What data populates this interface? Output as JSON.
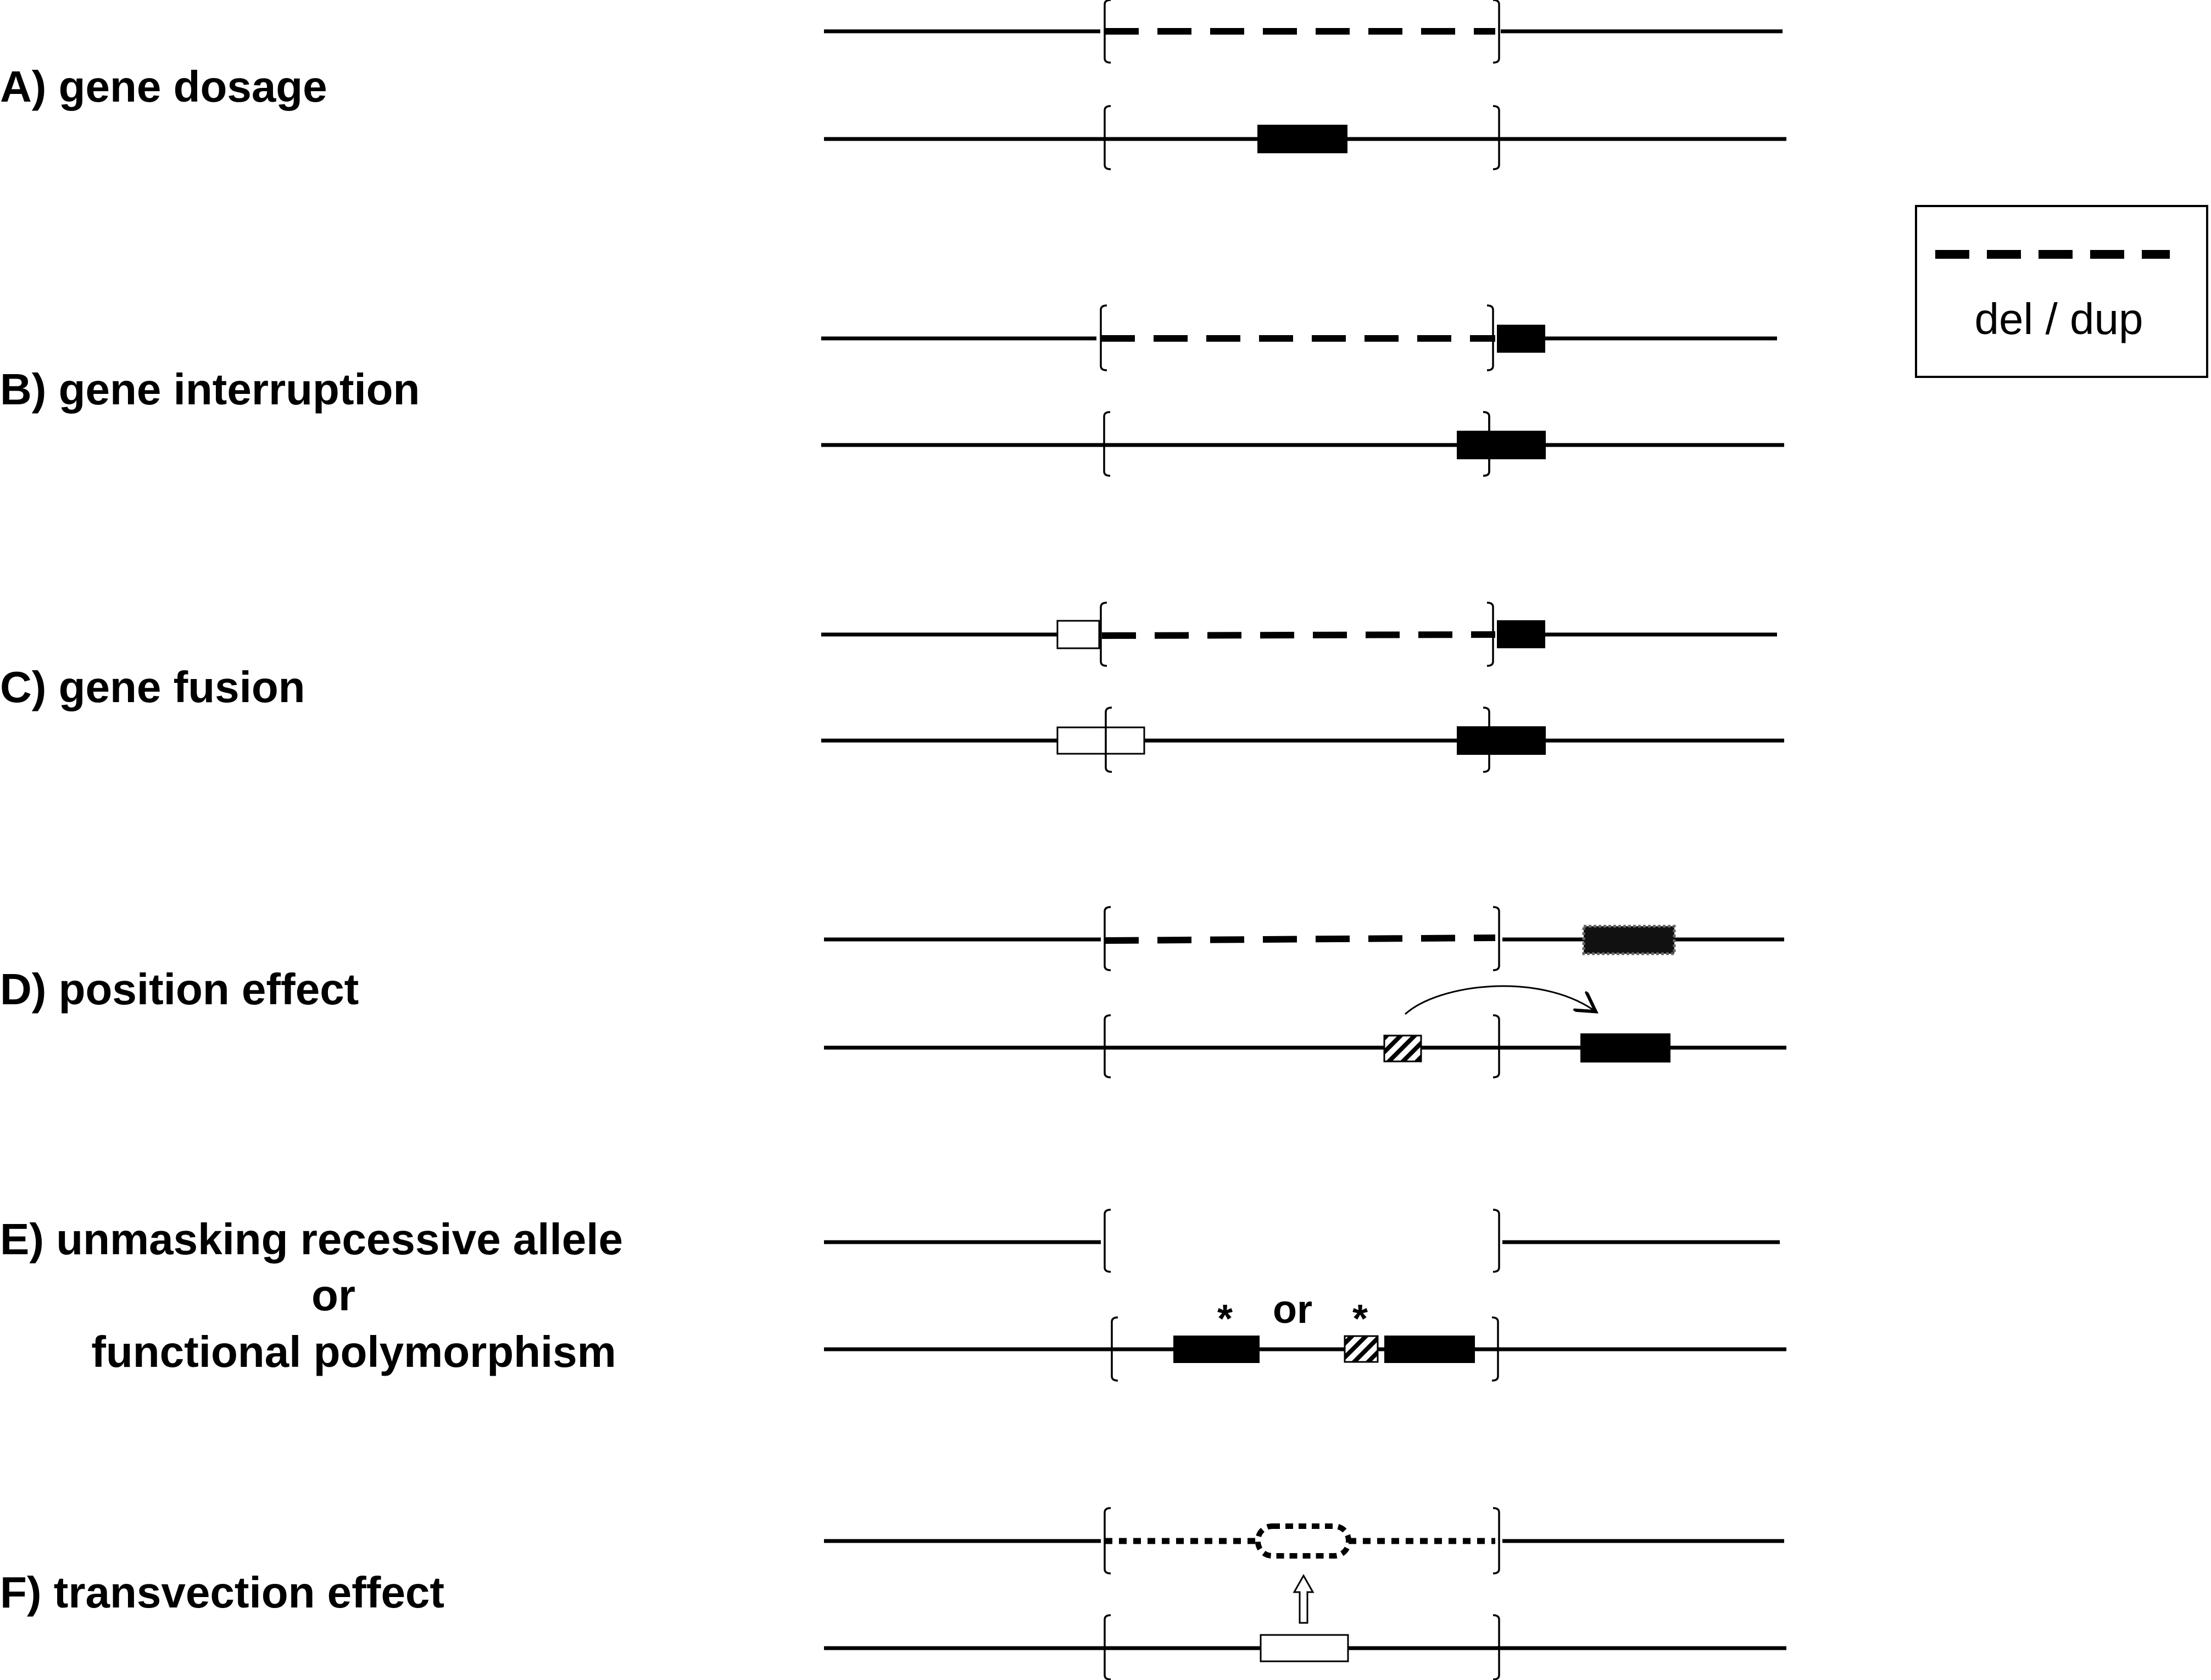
{
  "panels": [
    {
      "id": "A",
      "label": "A) gene dosage"
    },
    {
      "id": "B",
      "label": "B) gene interruption"
    },
    {
      "id": "C",
      "label": "C) gene fusion"
    },
    {
      "id": "D",
      "label": "D) position effect"
    },
    {
      "id": "E",
      "label": "E) unmasking recessive allele",
      "label_line2": "or",
      "label_line3": "functional polymorphism",
      "mark_star": "*",
      "mark_or": "or"
    },
    {
      "id": "F",
      "label": "F) transvection effect"
    }
  ],
  "legend": {
    "label": "del / dup"
  },
  "colors": {
    "line": "#000000",
    "background": "#ffffff"
  }
}
